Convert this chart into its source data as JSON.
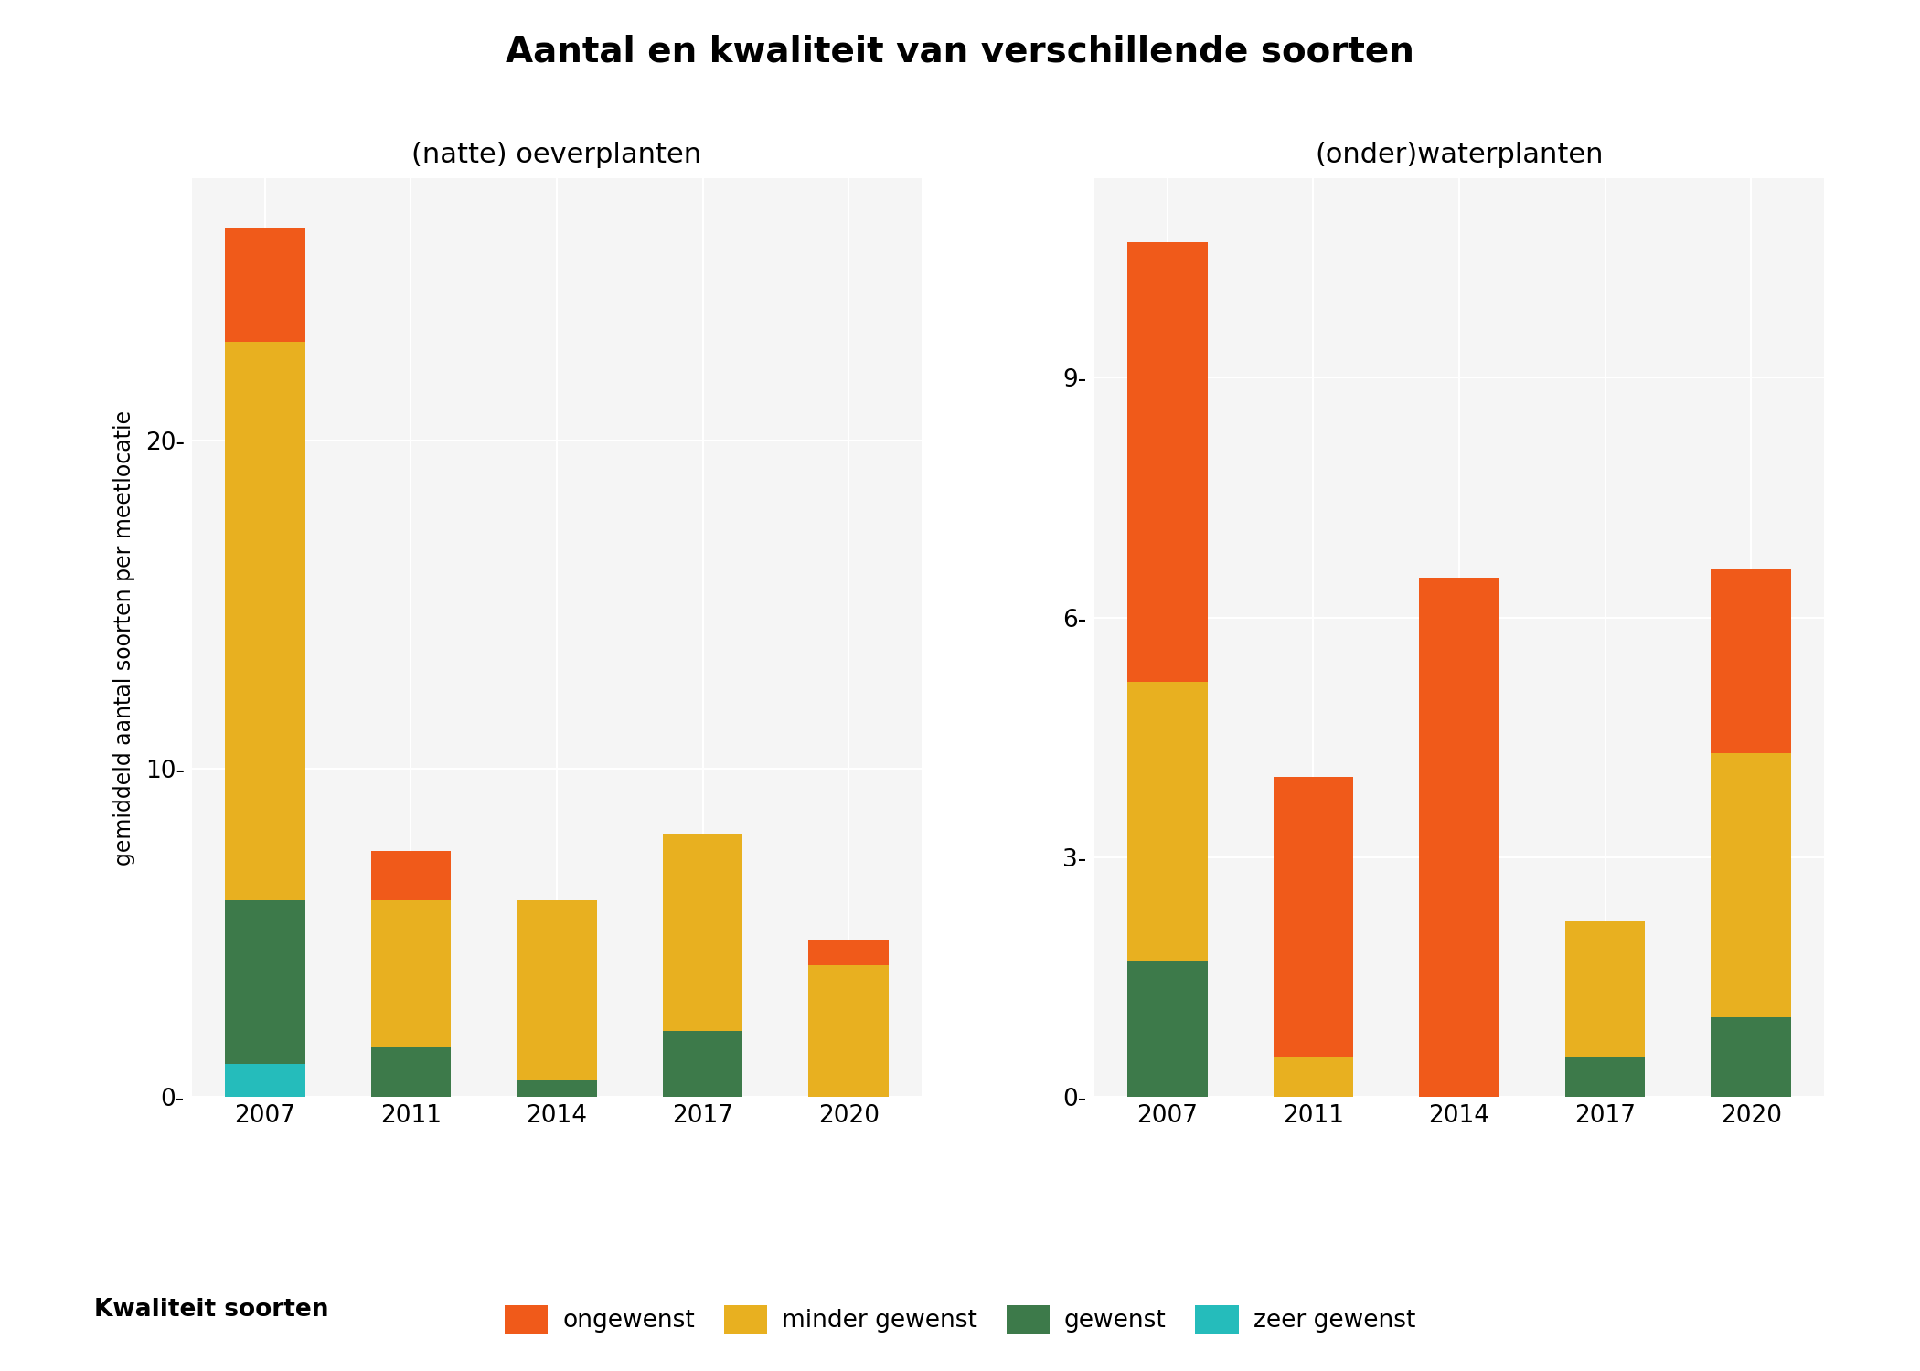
{
  "title": "Aantal en kwaliteit van verschillende soorten",
  "subtitle_left": "(natte) oeverplanten",
  "subtitle_right": "(onder)waterplanten",
  "ylabel": "gemiddeld aantal soorten per meetlocatie",
  "legend_title": "Kwaliteit soorten",
  "legend_labels": [
    "ongewenst",
    "minder gewenst",
    "gewenst",
    "zeer gewenst"
  ],
  "colors": {
    "ongewenst": "#F05A1A",
    "minder gewenst": "#E8B020",
    "gewenst": "#3D7A4A",
    "zeer gewenst": "#25BCBB"
  },
  "years": [
    "2007",
    "2011",
    "2014",
    "2017",
    "2020"
  ],
  "left_data": {
    "zeer gewenst": [
      1.0,
      0.0,
      0.0,
      0.0,
      0.0
    ],
    "gewenst": [
      5.0,
      1.5,
      0.5,
      2.0,
      0.0
    ],
    "minder gewenst": [
      17.0,
      4.5,
      5.5,
      6.0,
      4.0
    ],
    "ongewenst": [
      3.5,
      1.5,
      0.0,
      0.0,
      0.8
    ]
  },
  "right_data": {
    "zeer gewenst": [
      0.0,
      0.0,
      0.0,
      0.0,
      0.0
    ],
    "gewenst": [
      1.7,
      0.0,
      0.0,
      0.5,
      1.0
    ],
    "minder gewenst": [
      3.5,
      0.5,
      0.0,
      1.7,
      3.3
    ],
    "ongewenst": [
      5.5,
      3.5,
      6.5,
      0.0,
      2.3
    ]
  },
  "left_yticks": [
    0,
    10,
    20
  ],
  "right_yticks": [
    0,
    3,
    6,
    9
  ],
  "left_ylim": [
    0,
    28
  ],
  "right_ylim": [
    0,
    11.5
  ],
  "background_color": "#FFFFFF",
  "plot_bg_color": "#F5F5F5",
  "grid_color": "#FFFFFF",
  "bar_width": 0.55,
  "title_fontsize": 28,
  "subtitle_fontsize": 22,
  "tick_fontsize": 19,
  "ylabel_fontsize": 17,
  "legend_fontsize": 19,
  "legend_title_fontsize": 19
}
